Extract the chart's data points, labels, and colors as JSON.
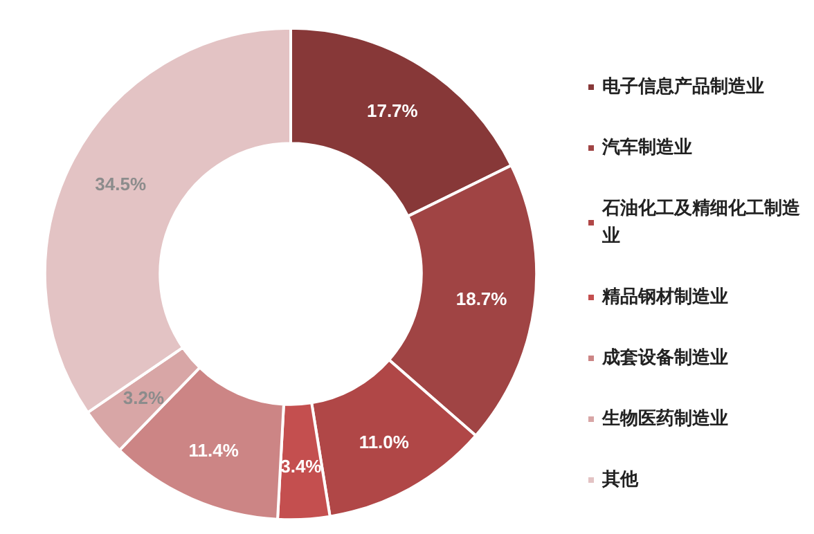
{
  "chart_data": {
    "type": "donut",
    "categories": [
      "电子信息产品制造业",
      "汽车制造业",
      "石油化工及精细化工制造业",
      "精品钢材制造业",
      "成套设备制造业",
      "生物医药制造业",
      "其他"
    ],
    "values": [
      17.7,
      18.7,
      11.0,
      3.4,
      11.4,
      3.2,
      34.5
    ],
    "colors": [
      "#873838",
      "#a04444",
      "#b04747",
      "#c44f4f",
      "#cc8585",
      "#d8a6a6",
      "#e3c3c4"
    ],
    "value_labels": [
      "17.7%",
      "18.7%",
      "11.0%",
      "3.4%",
      "11.4%",
      "3.2%",
      "34.5%"
    ],
    "legend": "right"
  }
}
